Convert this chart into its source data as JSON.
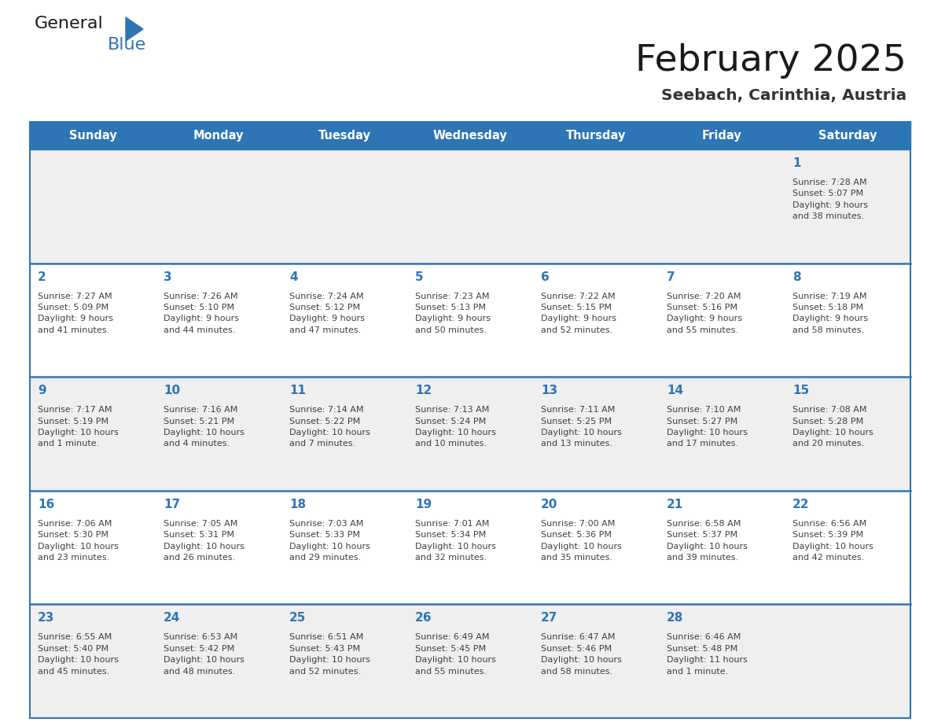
{
  "title": "February 2025",
  "subtitle": "Seebach, Carinthia, Austria",
  "days_of_week": [
    "Sunday",
    "Monday",
    "Tuesday",
    "Wednesday",
    "Thursday",
    "Friday",
    "Saturday"
  ],
  "header_bg": "#2E75B6",
  "header_text": "#FFFFFF",
  "row_bg_odd": "#EFEFEF",
  "row_bg_even": "#FFFFFF",
  "separator_color": "#2E75B6",
  "day_number_color": "#2E75B6",
  "cell_text_color": "#404040",
  "title_color": "#1a1a1a",
  "subtitle_color": "#333333",
  "logo_general_color": "#1a1a1a",
  "logo_blue_color": "#2E75B6",
  "weeks": [
    [
      {
        "day": "",
        "info": ""
      },
      {
        "day": "",
        "info": ""
      },
      {
        "day": "",
        "info": ""
      },
      {
        "day": "",
        "info": ""
      },
      {
        "day": "",
        "info": ""
      },
      {
        "day": "",
        "info": ""
      },
      {
        "day": "1",
        "info": "Sunrise: 7:28 AM\nSunset: 5:07 PM\nDaylight: 9 hours\nand 38 minutes."
      }
    ],
    [
      {
        "day": "2",
        "info": "Sunrise: 7:27 AM\nSunset: 5:09 PM\nDaylight: 9 hours\nand 41 minutes."
      },
      {
        "day": "3",
        "info": "Sunrise: 7:26 AM\nSunset: 5:10 PM\nDaylight: 9 hours\nand 44 minutes."
      },
      {
        "day": "4",
        "info": "Sunrise: 7:24 AM\nSunset: 5:12 PM\nDaylight: 9 hours\nand 47 minutes."
      },
      {
        "day": "5",
        "info": "Sunrise: 7:23 AM\nSunset: 5:13 PM\nDaylight: 9 hours\nand 50 minutes."
      },
      {
        "day": "6",
        "info": "Sunrise: 7:22 AM\nSunset: 5:15 PM\nDaylight: 9 hours\nand 52 minutes."
      },
      {
        "day": "7",
        "info": "Sunrise: 7:20 AM\nSunset: 5:16 PM\nDaylight: 9 hours\nand 55 minutes."
      },
      {
        "day": "8",
        "info": "Sunrise: 7:19 AM\nSunset: 5:18 PM\nDaylight: 9 hours\nand 58 minutes."
      }
    ],
    [
      {
        "day": "9",
        "info": "Sunrise: 7:17 AM\nSunset: 5:19 PM\nDaylight: 10 hours\nand 1 minute."
      },
      {
        "day": "10",
        "info": "Sunrise: 7:16 AM\nSunset: 5:21 PM\nDaylight: 10 hours\nand 4 minutes."
      },
      {
        "day": "11",
        "info": "Sunrise: 7:14 AM\nSunset: 5:22 PM\nDaylight: 10 hours\nand 7 minutes."
      },
      {
        "day": "12",
        "info": "Sunrise: 7:13 AM\nSunset: 5:24 PM\nDaylight: 10 hours\nand 10 minutes."
      },
      {
        "day": "13",
        "info": "Sunrise: 7:11 AM\nSunset: 5:25 PM\nDaylight: 10 hours\nand 13 minutes."
      },
      {
        "day": "14",
        "info": "Sunrise: 7:10 AM\nSunset: 5:27 PM\nDaylight: 10 hours\nand 17 minutes."
      },
      {
        "day": "15",
        "info": "Sunrise: 7:08 AM\nSunset: 5:28 PM\nDaylight: 10 hours\nand 20 minutes."
      }
    ],
    [
      {
        "day": "16",
        "info": "Sunrise: 7:06 AM\nSunset: 5:30 PM\nDaylight: 10 hours\nand 23 minutes."
      },
      {
        "day": "17",
        "info": "Sunrise: 7:05 AM\nSunset: 5:31 PM\nDaylight: 10 hours\nand 26 minutes."
      },
      {
        "day": "18",
        "info": "Sunrise: 7:03 AM\nSunset: 5:33 PM\nDaylight: 10 hours\nand 29 minutes."
      },
      {
        "day": "19",
        "info": "Sunrise: 7:01 AM\nSunset: 5:34 PM\nDaylight: 10 hours\nand 32 minutes."
      },
      {
        "day": "20",
        "info": "Sunrise: 7:00 AM\nSunset: 5:36 PM\nDaylight: 10 hours\nand 35 minutes."
      },
      {
        "day": "21",
        "info": "Sunrise: 6:58 AM\nSunset: 5:37 PM\nDaylight: 10 hours\nand 39 minutes."
      },
      {
        "day": "22",
        "info": "Sunrise: 6:56 AM\nSunset: 5:39 PM\nDaylight: 10 hours\nand 42 minutes."
      }
    ],
    [
      {
        "day": "23",
        "info": "Sunrise: 6:55 AM\nSunset: 5:40 PM\nDaylight: 10 hours\nand 45 minutes."
      },
      {
        "day": "24",
        "info": "Sunrise: 6:53 AM\nSunset: 5:42 PM\nDaylight: 10 hours\nand 48 minutes."
      },
      {
        "day": "25",
        "info": "Sunrise: 6:51 AM\nSunset: 5:43 PM\nDaylight: 10 hours\nand 52 minutes."
      },
      {
        "day": "26",
        "info": "Sunrise: 6:49 AM\nSunset: 5:45 PM\nDaylight: 10 hours\nand 55 minutes."
      },
      {
        "day": "27",
        "info": "Sunrise: 6:47 AM\nSunset: 5:46 PM\nDaylight: 10 hours\nand 58 minutes."
      },
      {
        "day": "28",
        "info": "Sunrise: 6:46 AM\nSunset: 5:48 PM\nDaylight: 11 hours\nand 1 minute."
      },
      {
        "day": "",
        "info": ""
      }
    ]
  ],
  "figsize": [
    11.88,
    9.18
  ],
  "dpi": 100
}
